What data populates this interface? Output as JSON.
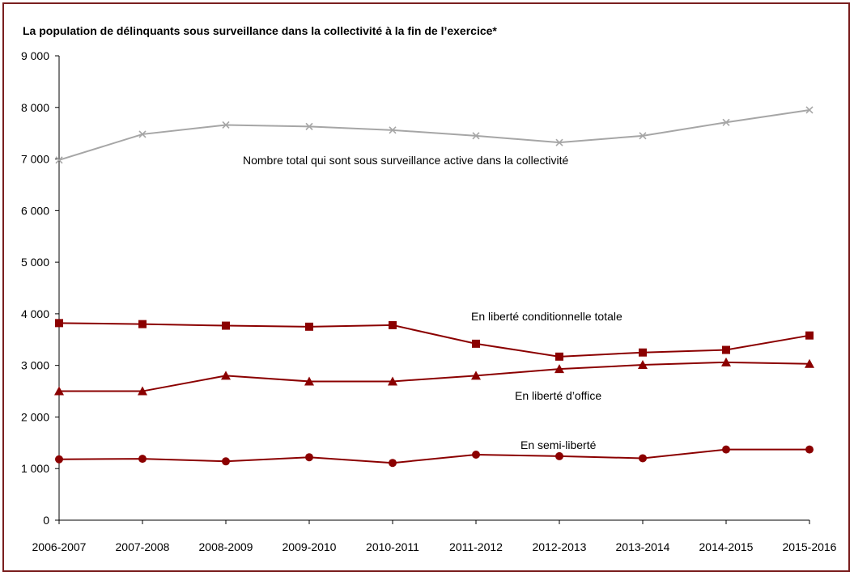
{
  "chart_data": {
    "type": "line",
    "title": "La population de délinquants sous surveillance dans la collectivité  à la fin de l’exercice*",
    "xlabel": "",
    "ylabel": "",
    "ylim": [
      0,
      9000
    ],
    "yticks": [
      0,
      1000,
      2000,
      3000,
      4000,
      5000,
      6000,
      7000,
      8000,
      9000
    ],
    "ytick_labels": [
      "0",
      "1 000",
      "2 000",
      "3 000",
      "4 000",
      "5 000",
      "6 000",
      "7 000",
      "8 000",
      "9 000"
    ],
    "grid": false,
    "legend": "none",
    "categories": [
      "2006-2007",
      "2007-2008",
      "2008-2009",
      "2009-2010",
      "2010-2011",
      "2011-2012",
      "2012-2013",
      "2013-2014",
      "2014-2015",
      "2015-2016"
    ],
    "series": [
      {
        "name": "Nombre total qui sont sous surveillance active dans la collectivité",
        "marker": "x",
        "color": "#a6a6a6",
        "values": [
          6980,
          7480,
          7660,
          7630,
          7560,
          7450,
          7320,
          7450,
          7710,
          7950
        ]
      },
      {
        "name": "En liberté conditionnelle totale",
        "marker": "square",
        "color": "#8b0000",
        "values": [
          3820,
          3800,
          3770,
          3750,
          3780,
          3420,
          3170,
          3250,
          3300,
          3580
        ]
      },
      {
        "name": "En liberté d’office",
        "marker": "triangle",
        "color": "#8b0000",
        "values": [
          2500,
          2500,
          2800,
          2690,
          2690,
          2800,
          2930,
          3010,
          3060,
          3030
        ]
      },
      {
        "name": "En semi-liberté",
        "marker": "circle",
        "color": "#8b0000",
        "values": [
          1180,
          1190,
          1140,
          1220,
          1110,
          1270,
          1240,
          1200,
          1370,
          1370
        ]
      }
    ]
  }
}
